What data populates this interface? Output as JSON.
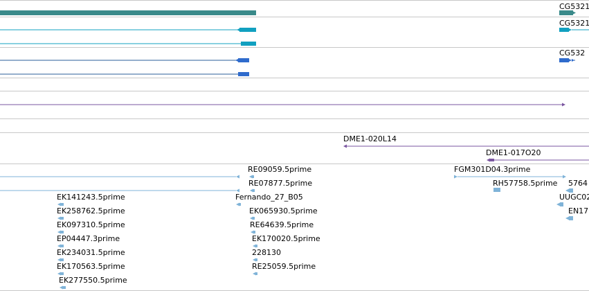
{
  "colors": {
    "background": "#ffffff",
    "divider": "#c8c8c8",
    "gene_dark": "#3a8a8a",
    "gene_cyan": "#11a0c0",
    "gene_blue": "#2f6bcc",
    "gene_thin_blue": "#2a5d9a",
    "clone": "#7a56a0",
    "est": "#7fb3d8"
  },
  "tracks": {
    "genes": {
      "labels": [
        "CG5321",
        "CG5321",
        "CG532"
      ]
    },
    "clones": {
      "labels": [
        "DME1-020L14",
        "DME1-017O20"
      ]
    },
    "ests": {
      "labels": [
        "RE09059.5prime",
        "RE07877.5prime",
        "Fernando_27_B05",
        "EK065930.5prime",
        "RE64639.5prime",
        "EK170020.5prime",
        "228130",
        "RE25059.5prime",
        "EK141243.5prime",
        "EK258762.5prime",
        "EK097310.5prime",
        "EP04447.3prime",
        "EK234031.5prime",
        "EK170563.5prime",
        "EK277550.5prime",
        "FGM301D04.3prime",
        "RH57758.5prime",
        "5764",
        "UUGC02",
        "EN17"
      ]
    }
  }
}
